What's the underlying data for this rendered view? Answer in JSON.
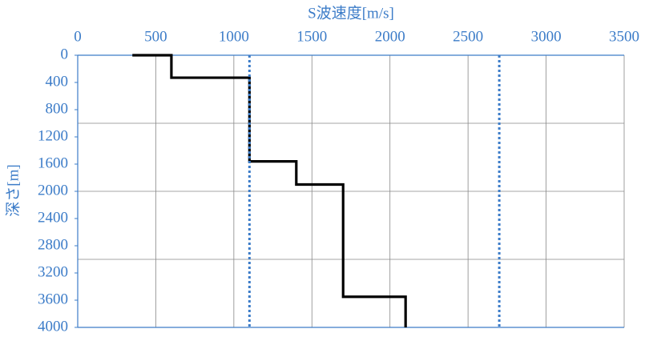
{
  "chart_data": {
    "type": "line",
    "title": "S波速度[m/s]",
    "y_label": "深さ[m]",
    "xlim": [
      0,
      3500
    ],
    "xticks": [
      0,
      500,
      1000,
      1500,
      2000,
      2500,
      3000,
      3500
    ],
    "ylim": [
      0,
      4000
    ],
    "yticks": [
      0,
      400,
      800,
      1200,
      1600,
      2000,
      2400,
      2800,
      3200,
      3600,
      4000
    ],
    "y_inverted": true,
    "x_axis_position": "top",
    "y_gridlines": [
      1000,
      2000,
      3000
    ],
    "series": [
      {
        "color": "#000000",
        "dashed": false,
        "x": [
          350,
          600,
          600,
          1100,
          1100,
          1400,
          1400,
          1700,
          1700,
          2100,
          2100
        ],
        "y": [
          0,
          0,
          330,
          330,
          1560,
          1560,
          1900,
          1900,
          3550,
          3550,
          4000
        ]
      },
      {
        "color": "#3c7cc8",
        "dashed": true,
        "x": [
          1100,
          1100
        ],
        "y": [
          0,
          4000
        ]
      },
      {
        "color": "#3c7cc8",
        "dashed": true,
        "x": [
          2700,
          2700
        ],
        "y": [
          0,
          4000
        ]
      }
    ]
  }
}
